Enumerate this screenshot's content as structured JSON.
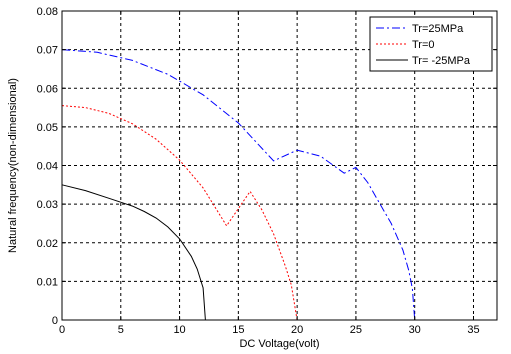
{
  "chart_data": {
    "type": "line",
    "xlabel": "DC Voltage(volt)",
    "ylabel": "Natural frequency(non-dimensional)",
    "xlim": [
      0,
      37
    ],
    "ylim": [
      0,
      0.08
    ],
    "xticks": [
      0,
      5,
      10,
      15,
      20,
      25,
      30,
      35
    ],
    "yticks": [
      0,
      0.01,
      0.02,
      0.03,
      0.04,
      0.05,
      0.06,
      0.07,
      0.08
    ],
    "xtick_labels": [
      "0",
      "5",
      "10",
      "15",
      "20",
      "25",
      "30",
      "35"
    ],
    "ytick_labels": [
      "0",
      "0.01",
      "0.02",
      "0.03",
      "0.04",
      "0.05",
      "0.06",
      "0.07",
      "0.08"
    ],
    "grid": true,
    "legend_position": "top-right",
    "series": [
      {
        "name": "Tr=25MPa",
        "color": "#0000ff",
        "style": "dash-dot",
        "x": [
          0,
          3,
          6,
          9,
          12,
          15,
          18,
          20,
          22,
          24,
          25,
          26,
          27,
          28,
          29,
          29.5,
          29.8,
          30
        ],
        "y": [
          0.07,
          0.0693,
          0.0672,
          0.0636,
          0.0583,
          0.051,
          0.0412,
          0.044,
          0.0424,
          0.038,
          0.0395,
          0.0356,
          0.0303,
          0.025,
          0.0181,
          0.0128,
          0.0081,
          0
        ]
      },
      {
        "name": "Tr=0",
        "color": "#ff0000",
        "style": "dotted",
        "x": [
          0,
          2,
          4,
          6,
          8,
          10,
          12,
          14,
          16,
          17,
          18,
          19,
          19.5,
          20
        ],
        "y": [
          0.0555,
          0.055,
          0.0535,
          0.0508,
          0.0468,
          0.0414,
          0.0342,
          0.0244,
          0.0333,
          0.0285,
          0.0223,
          0.0139,
          0.0091,
          0
        ]
      },
      {
        "name": "Tr= -25MPa",
        "color": "#000000",
        "style": "solid",
        "x": [
          0,
          2,
          4,
          6,
          7,
          8,
          9,
          10,
          11,
          11.5,
          12,
          12.2
        ],
        "y": [
          0.035,
          0.0335,
          0.0315,
          0.0295,
          0.0281,
          0.0264,
          0.0241,
          0.021,
          0.0165,
          0.0132,
          0.0083,
          0
        ]
      }
    ]
  }
}
